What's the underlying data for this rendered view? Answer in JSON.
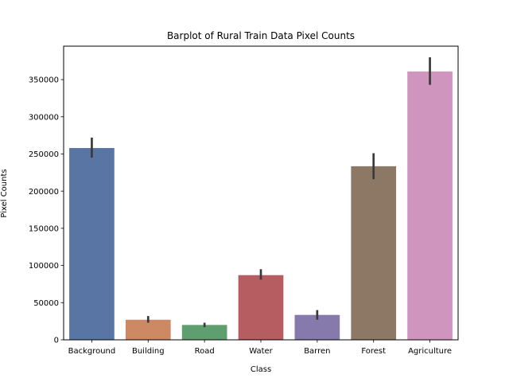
{
  "chart_data": {
    "type": "bar",
    "title": "Barplot of Rural Train Data Pixel Counts",
    "xlabel": "Class",
    "ylabel": "Pixel Counts",
    "categories": [
      "Background",
      "Building",
      "Road",
      "Water",
      "Barren",
      "Forest",
      "Agriculture"
    ],
    "values": [
      258000,
      27000,
      20000,
      87000,
      33500,
      233500,
      361000
    ],
    "error_low": [
      245000,
      23000,
      17000,
      81000,
      27000,
      216000,
      343000
    ],
    "error_high": [
      272000,
      32000,
      23000,
      95000,
      40000,
      251000,
      380000
    ],
    "colors": [
      "#5875a4",
      "#cc8963",
      "#5f9e6e",
      "#b55d60",
      "#857aab",
      "#8d7866",
      "#d095bf"
    ],
    "error_color": "#3a3a3a",
    "ylim": [
      0,
      395000
    ],
    "yticks": [
      0,
      50000,
      100000,
      150000,
      200000,
      250000,
      300000,
      350000
    ],
    "ytick_labels": [
      "0",
      "50000",
      "100000",
      "150000",
      "200000",
      "250000",
      "300000",
      "350000"
    ],
    "grid": false,
    "legend": "none"
  }
}
